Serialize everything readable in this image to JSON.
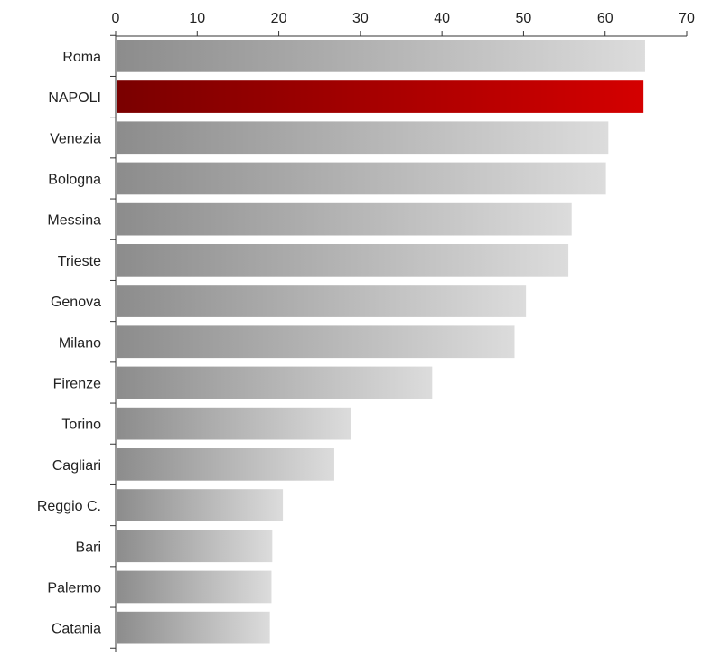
{
  "chart_data": {
    "type": "bar",
    "orientation": "horizontal",
    "title": "",
    "xlabel": "",
    "ylabel": "",
    "xlim": [
      0,
      70
    ],
    "x_ticks": [
      0,
      10,
      20,
      30,
      40,
      50,
      60,
      70
    ],
    "x_axis_position": "top",
    "grid": false,
    "legend": "none",
    "categories": [
      "Roma",
      "NAPOLI",
      "Venezia",
      "Bologna",
      "Messina",
      "Trieste",
      "Genova",
      "Milano",
      "Firenze",
      "Torino",
      "Cagliari",
      "Reggio C.",
      "Bari",
      "Palermo",
      "Catania"
    ],
    "values": [
      64.9,
      64.7,
      60.4,
      60.1,
      55.9,
      55.5,
      50.3,
      48.9,
      38.8,
      28.9,
      26.8,
      20.5,
      19.2,
      19.1,
      18.9
    ],
    "highlight": "NAPOLI",
    "colors": {
      "bar_light": "#dcdcdc",
      "bar_dark": "#8c8c8c",
      "highlight_light": "#d40000",
      "highlight_dark": "#7a0000",
      "axis": "#333333"
    }
  }
}
